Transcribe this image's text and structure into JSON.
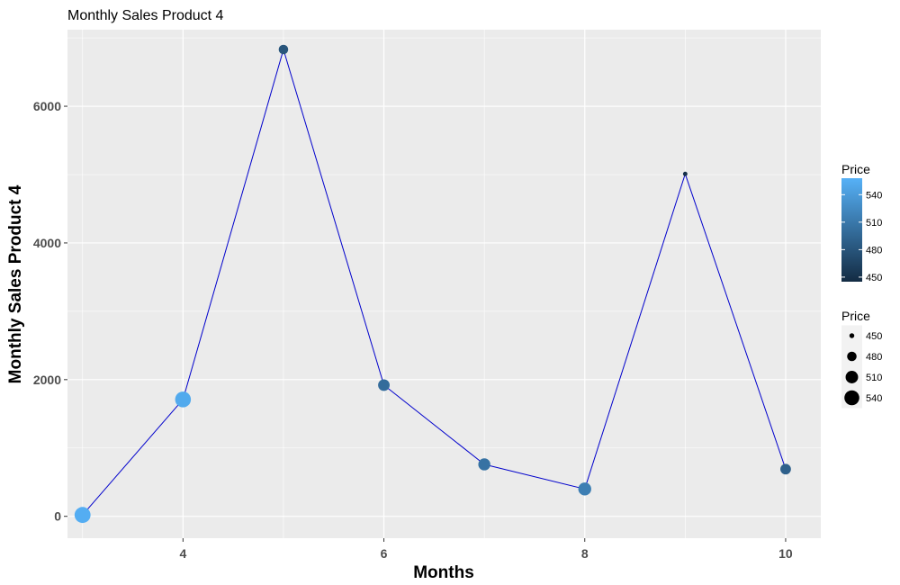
{
  "chart_data": {
    "type": "line",
    "title": "Monthly Sales Product 4",
    "xlabel": "Months",
    "ylabel": "Monthly Sales Product 4",
    "xlim": [
      2.85,
      10.35
    ],
    "ylim": [
      -320,
      7120
    ],
    "x_ticks": [
      4,
      6,
      8,
      10
    ],
    "y_ticks": [
      0,
      2000,
      4000,
      6000
    ],
    "grid": true,
    "legend_position": "right",
    "line_color": "#0000cc",
    "panel_background": "#ebebeb",
    "points": [
      {
        "x": 3,
        "y": 20,
        "price": 555
      },
      {
        "x": 4,
        "y": 1710,
        "price": 552
      },
      {
        "x": 5,
        "y": 6830,
        "price": 480
      },
      {
        "x": 6,
        "y": 1920,
        "price": 500
      },
      {
        "x": 7,
        "y": 760,
        "price": 505
      },
      {
        "x": 8,
        "y": 400,
        "price": 515
      },
      {
        "x": 9,
        "y": 5010,
        "price": 448
      },
      {
        "x": 10,
        "y": 690,
        "price": 490
      }
    ],
    "color_legend": {
      "title": "Price",
      "ticks": [
        450,
        480,
        510,
        540
      ],
      "low_color": "#132b43",
      "high_color": "#56b1f7",
      "range": [
        445,
        558
      ]
    },
    "size_legend": {
      "title": "Price",
      "ticks": [
        450,
        480,
        510,
        540
      ]
    }
  }
}
